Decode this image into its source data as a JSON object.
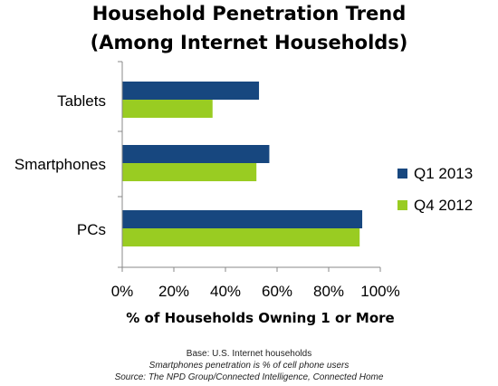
{
  "chart_data": {
    "type": "bar",
    "orientation": "horizontal",
    "title": "Household Penetration Trend",
    "subtitle": "(Among Internet Households)",
    "categories": [
      "Tablets",
      "Smartphones",
      "PCs"
    ],
    "series": [
      {
        "name": "Q1 2013",
        "color": "#17477f",
        "values": [
          53,
          57,
          93
        ]
      },
      {
        "name": "Q4 2012",
        "color": "#99cc22",
        "values": [
          35,
          52,
          92
        ]
      }
    ],
    "xlabel": "% of Households Owning 1 or More",
    "xlim": [
      0,
      100
    ],
    "xticks": [
      "0%",
      "20%",
      "40%",
      "60%",
      "80%",
      "100%"
    ],
    "grid": false,
    "legend_position": "right"
  },
  "notes": {
    "base": "Base: U.S. Internet households",
    "smartphone_note": "Smartphones penetration is % of cell phone users",
    "source": "Source: The NPD Group/Connected Intelligence, Connected Home"
  }
}
